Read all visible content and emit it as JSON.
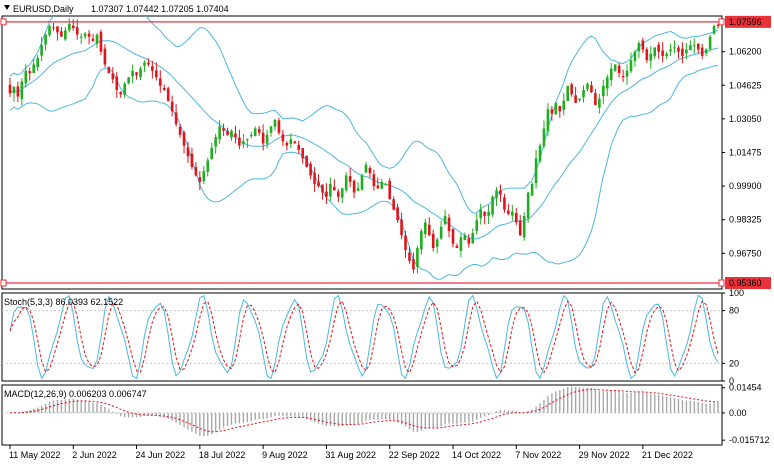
{
  "header": {
    "symbol": "EURUSD,Daily",
    "ohlc": "1.07307 1.07442 1.07205 1.07404"
  },
  "colors": {
    "bull": "#1fae1f",
    "bear": "#e0141a",
    "band": "#4cb8e0",
    "hline": "#e8323a",
    "stoch_main": "#4cb8e0",
    "stoch_signal": "#e0141a",
    "macd_hist": "#a8a8a8",
    "macd_signal": "#e0141a",
    "grid": "#c8c8c8",
    "frame": "#000000"
  },
  "chart_data": [
    {
      "type": "candlestick",
      "name": "price",
      "title": "EURUSD,Daily",
      "ylim": [
        0.9508,
        1.0787
      ],
      "ytick_labels": [
        "1.07596",
        "1.06200",
        "1.04625",
        "1.03050",
        "1.01475",
        "0.99900",
        "0.98325",
        "0.96750",
        "0.95360"
      ],
      "ytick_values": [
        1.07596,
        1.062,
        1.04625,
        1.0305,
        1.01475,
        0.999,
        0.98325,
        0.9675,
        0.9536
      ],
      "hlines": [
        {
          "value": 1.07596,
          "label": "1.07596"
        },
        {
          "value": 0.9536,
          "label": "0.95360"
        }
      ],
      "bollinger": "20-period upper, middle and lower bands",
      "close": [
        1.0425,
        1.0455,
        1.041,
        1.048,
        1.053,
        1.052,
        1.056,
        1.059,
        1.065,
        1.07,
        1.074,
        1.073,
        1.071,
        1.069,
        1.072,
        1.075,
        1.073,
        1.07,
        1.069,
        1.0705,
        1.069,
        1.067,
        1.07,
        1.062,
        1.056,
        1.052,
        1.049,
        1.044,
        1.042,
        1.047,
        1.05,
        1.053,
        1.051,
        1.054,
        1.057,
        1.056,
        1.053,
        1.05,
        1.046,
        1.044,
        1.039,
        1.034,
        1.028,
        1.023,
        1.018,
        1.013,
        1.008,
        1.004,
        1.001,
        1.006,
        1.011,
        1.017,
        1.022,
        1.027,
        1.025,
        1.023,
        1.025,
        1.022,
        1.018,
        1.02,
        1.021,
        1.023,
        1.026,
        1.024,
        1.019,
        1.023,
        1.027,
        1.03,
        1.024,
        1.02,
        1.018,
        1.021,
        1.019,
        1.016,
        1.012,
        1.008,
        1.004,
        1.0,
        0.999,
        0.996,
        0.994,
        1.0,
        0.997,
        0.994,
        0.998,
        1.004,
        1.001,
        0.996,
        0.998,
        1.004,
        1.009,
        1.005,
        0.999,
        0.998,
        1.001,
        1.0,
        0.993,
        0.988,
        0.983,
        0.976,
        0.969,
        0.964,
        0.96,
        0.97,
        0.978,
        0.982,
        0.976,
        0.97,
        0.974,
        0.98,
        0.985,
        0.978,
        0.972,
        0.97,
        0.975,
        0.976,
        0.972,
        0.977,
        0.983,
        0.988,
        0.985,
        0.987,
        0.994,
        0.997,
        0.995,
        0.988,
        0.986,
        0.987,
        0.982,
        0.976,
        0.985,
        0.996,
        1.0,
        1.012,
        1.018,
        1.026,
        1.035,
        1.033,
        1.038,
        1.034,
        1.039,
        1.046,
        1.042,
        1.038,
        1.04,
        1.044,
        1.047,
        1.043,
        1.037,
        1.04,
        1.046,
        1.05,
        1.054,
        1.056,
        1.052,
        1.05,
        1.053,
        1.058,
        1.062,
        1.066,
        1.063,
        1.058,
        1.061,
        1.064,
        1.062,
        1.06,
        1.061,
        1.063,
        1.064,
        1.062,
        1.06,
        1.063,
        1.065,
        1.065,
        1.063,
        1.06,
        1.063,
        1.069,
        1.074,
        1.074
      ],
      "xtick_labels": [
        "11 May 2022",
        "2 Jun 2022",
        "24 Jun 2022",
        "18 Jul 2022",
        "9 Aug 2022",
        "31 Aug 2022",
        "22 Sep 2022",
        "14 Oct 2022",
        "7 Nov 2022",
        "29 Nov 2022",
        "21 Dec 2022"
      ],
      "xtick_index": [
        0,
        16,
        32,
        48,
        64,
        80,
        96,
        112,
        128,
        144,
        160
      ]
    },
    {
      "type": "line",
      "name": "stochastic",
      "label": "Stoch(5,3,3) 86.0393 62.1522",
      "ylim": [
        0,
        100
      ],
      "ytick_labels": [
        "100",
        "80",
        "20",
        "0"
      ],
      "ytick_values": [
        100,
        80,
        20,
        0
      ],
      "levels": [
        80,
        20
      ],
      "series": [
        "main (solid)",
        "signal (dashed)"
      ]
    },
    {
      "type": "bar",
      "name": "macd",
      "label": "MACD(12,26,9) 0.006203 0.006747",
      "ylim": [
        -0.0185,
        0.0161
      ],
      "ytick_labels": [
        "0.01454",
        "0.00",
        "-0.015712"
      ],
      "ytick_values": [
        0.01454,
        0.0,
        -0.015712
      ],
      "series": [
        "histogram (bars)",
        "signal (dotted)"
      ]
    }
  ]
}
